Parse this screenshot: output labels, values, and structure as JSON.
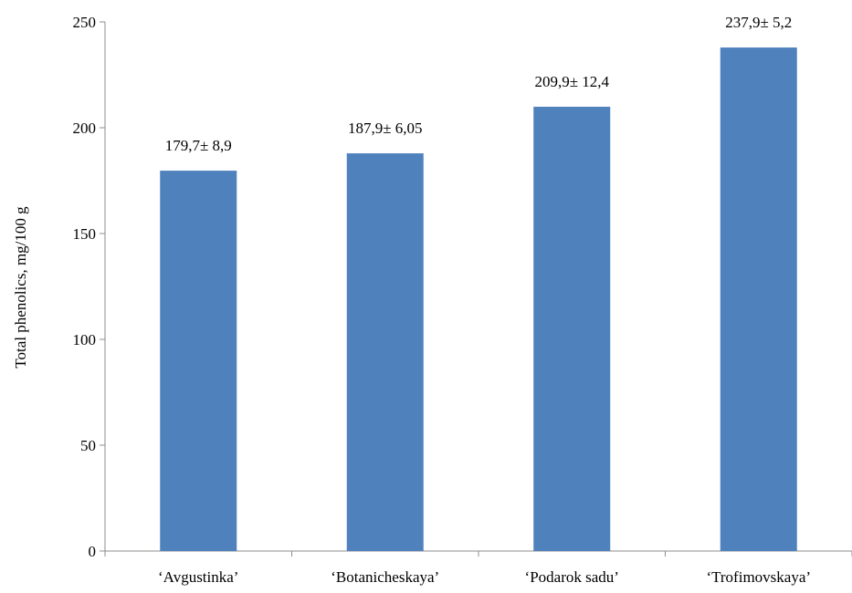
{
  "chart_data": {
    "type": "bar",
    "title": "",
    "xlabel": "",
    "ylabel": "Total phenolics,  mg/100 g",
    "ylim": [
      0,
      250
    ],
    "yticks": [
      0,
      50,
      100,
      150,
      200,
      250
    ],
    "grid": false,
    "legend": "none",
    "bar_color": "#4f81bd",
    "categories": [
      "‘Avgustinka’",
      "‘Botanicheskaya’",
      "‘Podarok sadu’",
      "‘Trofimovskaya’"
    ],
    "values": [
      179.7,
      187.9,
      209.9,
      237.9
    ],
    "data_labels": [
      "179,7± 8,9",
      "187,9± 6,05",
      "209,9± 12,4",
      "237,9± 5,2"
    ]
  }
}
